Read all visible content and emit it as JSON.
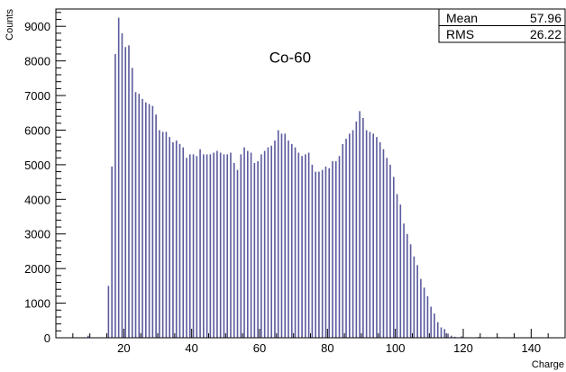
{
  "chart_data": {
    "type": "bar",
    "title": "",
    "xlabel": "Charge",
    "ylabel": "Counts",
    "xlim": [
      0,
      150
    ],
    "ylim": [
      0,
      9500
    ],
    "x_ticks": [
      20,
      40,
      60,
      80,
      100,
      120,
      140
    ],
    "y_ticks": [
      0,
      1000,
      2000,
      3000,
      4000,
      5000,
      6000,
      7000,
      8000,
      9000
    ],
    "annotation": "Co-60",
    "bar_color": "#5a5a9e",
    "grid": false,
    "stats": [
      {
        "label": "Mean",
        "value": "57.96"
      },
      {
        "label": "RMS",
        "value": "26.22"
      }
    ],
    "x": [
      9.5,
      15.5,
      16.5,
      17.5,
      18.5,
      19.5,
      20.5,
      21.5,
      22.5,
      23.5,
      24.5,
      25.5,
      26.5,
      27.5,
      28.5,
      29.5,
      30.5,
      31.5,
      32.5,
      33.5,
      34.5,
      35.5,
      36.5,
      37.5,
      38.5,
      39.5,
      40.5,
      41.5,
      42.5,
      43.5,
      44.5,
      45.5,
      46.5,
      47.5,
      48.5,
      49.5,
      50.5,
      51.5,
      52.5,
      53.5,
      54.5,
      55.5,
      56.5,
      57.5,
      58.5,
      59.5,
      60.5,
      61.5,
      62.5,
      63.5,
      64.5,
      65.5,
      66.5,
      67.5,
      68.5,
      69.5,
      70.5,
      71.5,
      72.5,
      73.5,
      74.5,
      75.5,
      76.5,
      77.5,
      78.5,
      79.5,
      80.5,
      81.5,
      82.5,
      83.5,
      84.5,
      85.5,
      86.5,
      87.5,
      88.5,
      89.5,
      90.5,
      91.5,
      92.5,
      93.5,
      94.5,
      95.5,
      96.5,
      97.5,
      98.5,
      99.5,
      100.5,
      101.5,
      102.5,
      103.5,
      104.5,
      105.5,
      106.5,
      107.5,
      108.5,
      109.5,
      110.5,
      111.5,
      112.5,
      113.5,
      114.5,
      115.5,
      116.5,
      117.5,
      119.5,
      124.5,
      130.5,
      140.5
    ],
    "values": [
      60,
      1500,
      4950,
      8200,
      9250,
      8800,
      8400,
      8450,
      7800,
      7100,
      7050,
      6900,
      6800,
      6750,
      6700,
      6450,
      6000,
      5950,
      5950,
      5800,
      5650,
      5700,
      5600,
      5500,
      5200,
      5300,
      5300,
      5250,
      5450,
      5300,
      5300,
      5300,
      5350,
      5400,
      5350,
      5300,
      5300,
      5350,
      5050,
      4850,
      5300,
      5500,
      5400,
      5350,
      5050,
      5100,
      5300,
      5400,
      5500,
      5550,
      5700,
      6000,
      5900,
      5900,
      5700,
      5600,
      5500,
      5350,
      5250,
      5300,
      5350,
      5000,
      4800,
      4800,
      4850,
      4950,
      4900,
      5100,
      5100,
      5250,
      5600,
      5750,
      5900,
      6000,
      6250,
      6550,
      6350,
      6000,
      5950,
      5900,
      5800,
      5650,
      5450,
      5200,
      5000,
      4650,
      4150,
      3850,
      3300,
      3000,
      2700,
      2350,
      2100,
      1700,
      1450,
      1200,
      900,
      700,
      450,
      300,
      250,
      120,
      60,
      30,
      40,
      25,
      20,
      15
    ]
  }
}
